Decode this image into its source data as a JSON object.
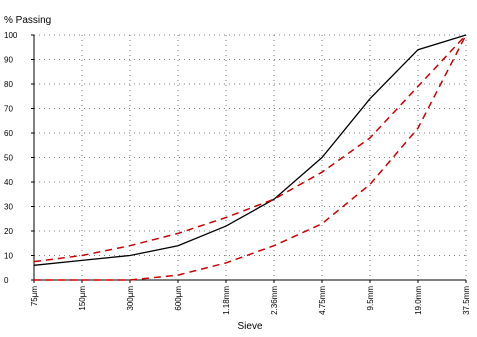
{
  "chart_data": {
    "type": "line",
    "ylabel": "% Passing",
    "xlabel": "Sieve",
    "categories": [
      "75µm",
      "150µm",
      "300µm",
      "600µm",
      "1.18mm",
      "2.36mm",
      "4.75mm",
      "9.5mm",
      "19.0mm",
      "37.5mm"
    ],
    "ylim": [
      0,
      100
    ],
    "yticks": [
      0,
      10,
      20,
      30,
      40,
      50,
      60,
      70,
      80,
      90,
      100
    ],
    "grid": "dotted",
    "legend": "none",
    "series": [
      {
        "style": "solid",
        "color": "#000000",
        "values": [
          6,
          8,
          10,
          14,
          22,
          33,
          50,
          74,
          94,
          100
        ]
      },
      {
        "style": "dashed",
        "color": "#cc0000",
        "values": [
          7.5,
          10,
          14,
          19,
          25.5,
          33,
          44,
          58,
          79,
          100
        ]
      },
      {
        "style": "dashed",
        "color": "#cc0000",
        "values": [
          0,
          0,
          0,
          2,
          7,
          14,
          23,
          39,
          62,
          100
        ]
      }
    ]
  }
}
